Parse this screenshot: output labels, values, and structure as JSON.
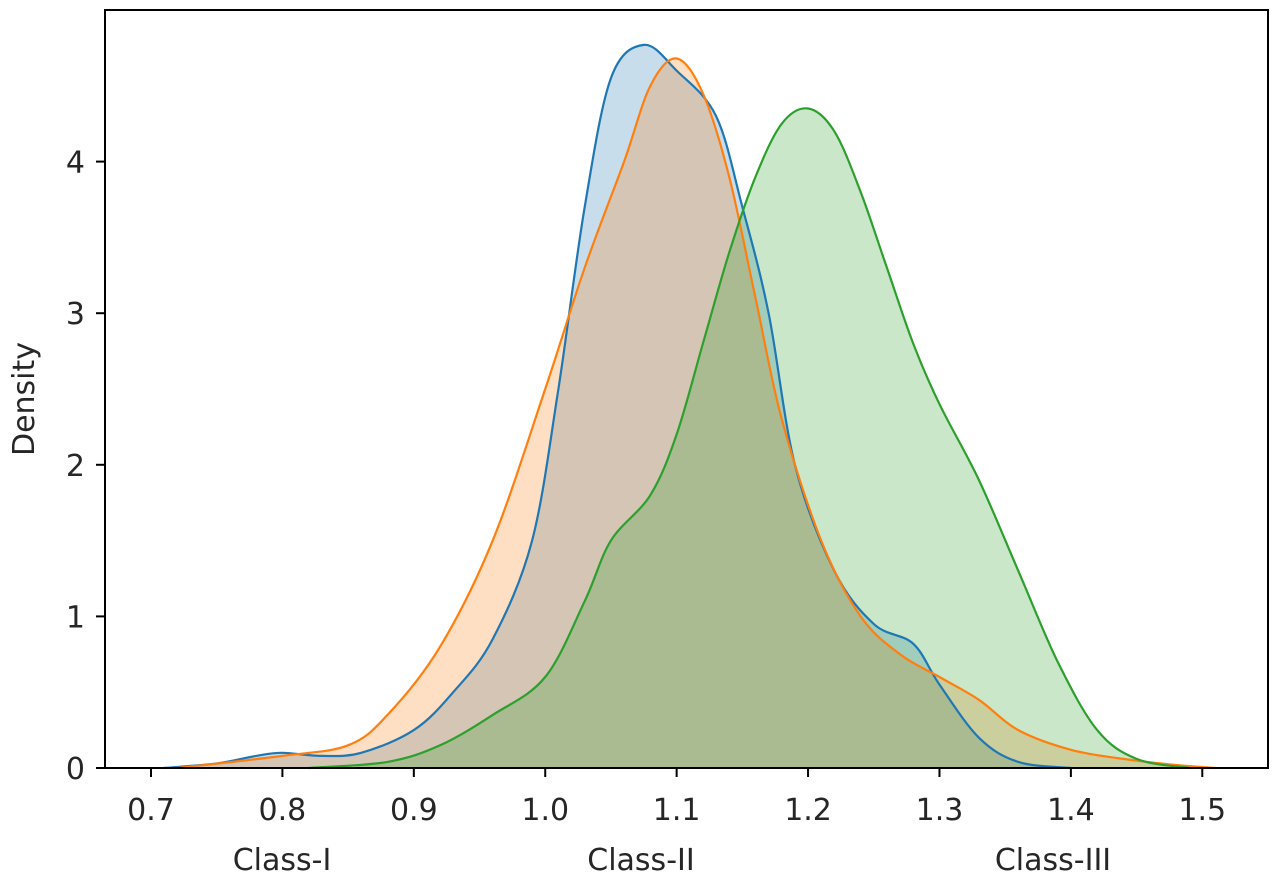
{
  "chart_data": {
    "type": "area",
    "title": "",
    "xlabel": "",
    "ylabel": "Density",
    "xlim": [
      0.665,
      1.55
    ],
    "ylim": [
      0,
      5.0
    ],
    "xticks": [
      "0.7",
      "0.8",
      "0.9",
      "1.0",
      "1.1",
      "1.2",
      "1.3",
      "1.4",
      "1.5"
    ],
    "yticks": [
      "0",
      "1",
      "2",
      "3",
      "4"
    ],
    "class_labels": [
      "Class-I",
      "Class-II",
      "Class-III"
    ],
    "grid": false,
    "legend": "none",
    "series": [
      {
        "color": "#1f77b4",
        "points": [
          [
            0.71,
            0.0
          ],
          [
            0.75,
            0.03
          ],
          [
            0.78,
            0.08
          ],
          [
            0.8,
            0.1
          ],
          [
            0.83,
            0.08
          ],
          [
            0.86,
            0.1
          ],
          [
            0.9,
            0.25
          ],
          [
            0.93,
            0.5
          ],
          [
            0.96,
            0.85
          ],
          [
            0.99,
            1.5
          ],
          [
            1.01,
            2.5
          ],
          [
            1.03,
            3.7
          ],
          [
            1.05,
            4.55
          ],
          [
            1.075,
            4.77
          ],
          [
            1.1,
            4.6
          ],
          [
            1.13,
            4.3
          ],
          [
            1.15,
            3.7
          ],
          [
            1.17,
            3.0
          ],
          [
            1.19,
            2.0
          ],
          [
            1.22,
            1.3
          ],
          [
            1.25,
            0.95
          ],
          [
            1.28,
            0.82
          ],
          [
            1.3,
            0.55
          ],
          [
            1.33,
            0.2
          ],
          [
            1.36,
            0.04
          ],
          [
            1.4,
            0.0
          ]
        ]
      },
      {
        "color": "#ff7f0e",
        "points": [
          [
            0.72,
            0.0
          ],
          [
            0.8,
            0.08
          ],
          [
            0.85,
            0.15
          ],
          [
            0.88,
            0.35
          ],
          [
            0.92,
            0.8
          ],
          [
            0.96,
            1.5
          ],
          [
            1.0,
            2.5
          ],
          [
            1.03,
            3.3
          ],
          [
            1.06,
            4.0
          ],
          [
            1.08,
            4.5
          ],
          [
            1.1,
            4.68
          ],
          [
            1.12,
            4.45
          ],
          [
            1.14,
            3.9
          ],
          [
            1.16,
            3.1
          ],
          [
            1.18,
            2.3
          ],
          [
            1.21,
            1.5
          ],
          [
            1.24,
            1.0
          ],
          [
            1.27,
            0.75
          ],
          [
            1.3,
            0.6
          ],
          [
            1.33,
            0.45
          ],
          [
            1.36,
            0.25
          ],
          [
            1.4,
            0.12
          ],
          [
            1.44,
            0.06
          ],
          [
            1.48,
            0.02
          ],
          [
            1.51,
            0.0
          ]
        ]
      },
      {
        "color": "#2ca02c",
        "points": [
          [
            0.82,
            0.0
          ],
          [
            0.88,
            0.04
          ],
          [
            0.92,
            0.15
          ],
          [
            0.96,
            0.35
          ],
          [
            1.0,
            0.6
          ],
          [
            1.03,
            1.1
          ],
          [
            1.05,
            1.5
          ],
          [
            1.08,
            1.8
          ],
          [
            1.1,
            2.2
          ],
          [
            1.12,
            2.8
          ],
          [
            1.14,
            3.4
          ],
          [
            1.16,
            3.9
          ],
          [
            1.18,
            4.25
          ],
          [
            1.2,
            4.35
          ],
          [
            1.22,
            4.2
          ],
          [
            1.24,
            3.8
          ],
          [
            1.26,
            3.3
          ],
          [
            1.28,
            2.8
          ],
          [
            1.3,
            2.4
          ],
          [
            1.33,
            1.9
          ],
          [
            1.36,
            1.3
          ],
          [
            1.39,
            0.7
          ],
          [
            1.42,
            0.25
          ],
          [
            1.45,
            0.06
          ],
          [
            1.49,
            0.0
          ]
        ]
      }
    ]
  }
}
